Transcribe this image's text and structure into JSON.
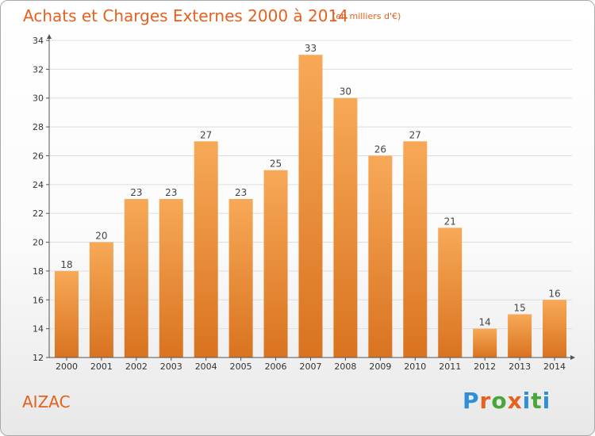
{
  "header": {
    "title": "Achats et Charges Externes 2000 à 2014",
    "subtitle": "(en milliers d'€)"
  },
  "footer": {
    "location": "AIZAC",
    "brand": "Proxiti",
    "brand_colors": [
      "#2f8fd6",
      "#e4611f",
      "#4aa53a",
      "#e4611f",
      "#2f8fd6",
      "#4aa53a",
      "#2f8fd6"
    ]
  },
  "colors": {
    "bar_top": "#f7a957",
    "bar_bottom": "#d97320",
    "accent": "#e4611f",
    "axis": "#555555",
    "grid": "#dddddd"
  },
  "chart_data": {
    "type": "bar",
    "title": "Achats et Charges Externes 2000 à 2014",
    "subtitle": "(en milliers d'€)",
    "xlabel": "",
    "ylabel": "",
    "categories": [
      "2000",
      "2001",
      "2002",
      "2003",
      "2004",
      "2005",
      "2006",
      "2007",
      "2008",
      "2009",
      "2010",
      "2011",
      "2012",
      "2013",
      "2014"
    ],
    "values": [
      18,
      20,
      23,
      23,
      27,
      23,
      25,
      33,
      30,
      26,
      27,
      21,
      14,
      15,
      16
    ],
    "ylim": [
      12,
      34
    ],
    "yticks": [
      12,
      14,
      16,
      18,
      20,
      22,
      24,
      26,
      28,
      30,
      32,
      34
    ],
    "grid": true,
    "data_labels": true
  }
}
